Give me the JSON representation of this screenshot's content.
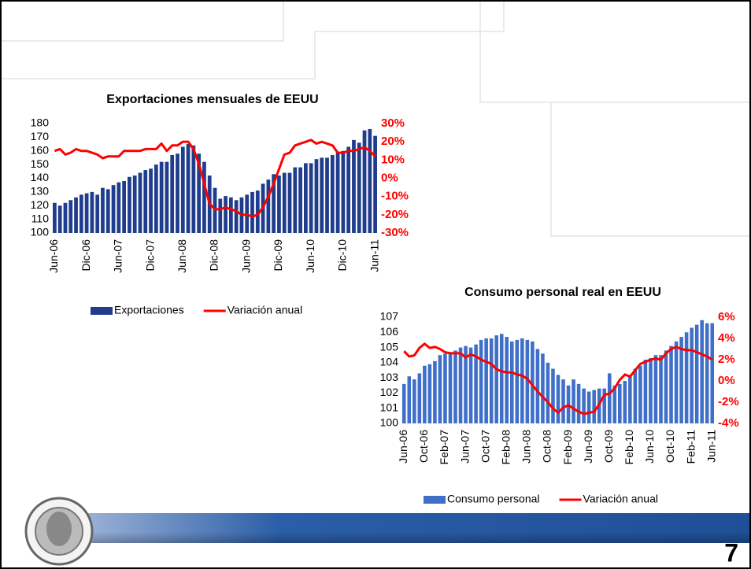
{
  "page_number": "7",
  "chart_data": [
    {
      "type": "combo",
      "title": "Exportaciones mensuales de EEUU",
      "categories": [
        "Jun-06",
        null,
        null,
        null,
        null,
        null,
        "Dic-06",
        null,
        null,
        null,
        null,
        null,
        "Jun-07",
        null,
        null,
        null,
        null,
        null,
        "Dic-07",
        null,
        null,
        null,
        null,
        null,
        "Jun-08",
        null,
        null,
        null,
        null,
        null,
        "Dic-08",
        null,
        null,
        null,
        null,
        null,
        "Jun-09",
        null,
        null,
        null,
        null,
        null,
        "Dic-09",
        null,
        null,
        null,
        null,
        null,
        "Jun-10",
        null,
        null,
        null,
        null,
        null,
        "Dic-10",
        null,
        null,
        null,
        null,
        null,
        "Jun-11"
      ],
      "series": [
        {
          "name": "Exportaciones",
          "type": "bar",
          "color": "#1f3d8c",
          "values": [
            122,
            120,
            122,
            124,
            126,
            128,
            129,
            130,
            128,
            133,
            132,
            135,
            137,
            138,
            141,
            142,
            144,
            146,
            147,
            150,
            152,
            152,
            157,
            158,
            163,
            165,
            164,
            158,
            152,
            142,
            133,
            125,
            127,
            126,
            124,
            126,
            128,
            130,
            131,
            136,
            139,
            143,
            142,
            144,
            144,
            148,
            148,
            151,
            151,
            154,
            155,
            155,
            157,
            159,
            160,
            163,
            168,
            166,
            175,
            176,
            171
          ]
        },
        {
          "name": "Variación anual",
          "type": "line",
          "axis": "y2",
          "color": "#ff0000",
          "values": [
            15,
            16,
            13,
            14,
            16,
            15,
            15,
            14,
            13,
            11,
            12,
            12,
            12,
            15,
            15,
            15,
            15,
            16,
            16,
            16,
            19,
            15,
            18,
            18,
            20,
            20,
            16,
            8,
            -3,
            -14,
            -17,
            -17,
            -16,
            -17,
            -18,
            -20,
            -20,
            -21,
            -20,
            -16,
            -10,
            -3,
            5,
            13,
            14,
            18,
            19,
            20,
            21,
            19,
            20,
            19,
            18,
            14,
            14,
            15,
            15,
            16,
            17,
            15,
            12
          ]
        }
      ],
      "ylim": [
        100,
        180
      ],
      "yticks": [
        100,
        110,
        120,
        130,
        140,
        150,
        160,
        170,
        180
      ],
      "y2lim": [
        -30,
        30
      ],
      "y2ticks": [
        {
          "value": -30,
          "label": "-30%"
        },
        {
          "value": -20,
          "label": "-20%"
        },
        {
          "value": -10,
          "label": "-10%"
        },
        {
          "value": 0,
          "label": "0%"
        },
        {
          "value": 10,
          "label": "10%"
        },
        {
          "value": 20,
          "label": "20%"
        },
        {
          "value": 30,
          "label": "30%"
        }
      ],
      "grid": false
    },
    {
      "type": "combo",
      "title": "Consumo personal real en EEUU",
      "categories": [
        "Jun-06",
        null,
        null,
        null,
        "Oct-06",
        null,
        null,
        null,
        "Feb-07",
        null,
        null,
        null,
        "Jun-07",
        null,
        null,
        null,
        "Oct-07",
        null,
        null,
        null,
        "Feb-08",
        null,
        null,
        null,
        "Jun-08",
        null,
        null,
        null,
        "Oct-08",
        null,
        null,
        null,
        "Feb-09",
        null,
        null,
        null,
        "Jun-09",
        null,
        null,
        null,
        "Oct-09",
        null,
        null,
        null,
        "Feb-10",
        null,
        null,
        null,
        "Jun-10",
        null,
        null,
        null,
        "Oct-10",
        null,
        null,
        null,
        "Feb-11",
        null,
        null,
        null,
        "Jun-11"
      ],
      "series": [
        {
          "name": "Consumo personal",
          "type": "bar",
          "color": "#3f6fc8",
          "values": [
            102.6,
            103.1,
            102.9,
            103.3,
            103.8,
            103.9,
            104.1,
            104.5,
            104.6,
            104.7,
            104.8,
            105.0,
            105.1,
            105.0,
            105.2,
            105.5,
            105.6,
            105.6,
            105.8,
            105.9,
            105.7,
            105.4,
            105.5,
            105.6,
            105.5,
            105.4,
            104.9,
            104.6,
            104.0,
            103.6,
            103.2,
            102.9,
            102.5,
            102.9,
            102.6,
            102.3,
            102.1,
            102.2,
            102.3,
            102.3,
            103.3,
            102.5,
            102.6,
            102.8,
            103.2,
            103.6,
            103.8,
            104.2,
            104.3,
            104.5,
            104.5,
            104.8,
            105.1,
            105.4,
            105.7,
            106.0,
            106.3,
            106.5,
            106.8,
            106.6,
            106.6
          ]
        },
        {
          "name": "Variación anual",
          "type": "line",
          "axis": "y2",
          "color": "#ff0000",
          "values": [
            2.8,
            2.3,
            2.4,
            3.1,
            3.5,
            3.1,
            3.2,
            3.0,
            2.7,
            2.6,
            2.6,
            2.6,
            2.2,
            2.5,
            2.3,
            2.0,
            1.8,
            1.6,
            1.1,
            0.9,
            0.8,
            0.8,
            0.6,
            0.5,
            0.2,
            -0.4,
            -1.0,
            -1.5,
            -2.0,
            -2.6,
            -3.0,
            -2.5,
            -2.3,
            -2.6,
            -2.9,
            -3.1,
            -3.0,
            -2.9,
            -2.2,
            -1.3,
            -1.2,
            -0.7,
            0.1,
            0.6,
            0.4,
            1.0,
            1.6,
            1.8,
            2.0,
            2.1,
            2.0,
            2.6,
            3.0,
            3.2,
            3.0,
            2.9,
            2.9,
            2.7,
            2.5,
            2.3,
            2.0
          ]
        }
      ],
      "ylim": [
        100,
        107
      ],
      "yticks": [
        100,
        101,
        102,
        103,
        104,
        105,
        106,
        107
      ],
      "y2lim": [
        -4,
        6
      ],
      "y2ticks": [
        {
          "value": -4,
          "label": "-4%"
        },
        {
          "value": -2,
          "label": "-2%"
        },
        {
          "value": 0,
          "label": "0%"
        },
        {
          "value": 2,
          "label": "2%"
        },
        {
          "value": 4,
          "label": "4%"
        },
        {
          "value": 6,
          "label": "6%"
        }
      ],
      "grid": false
    }
  ]
}
